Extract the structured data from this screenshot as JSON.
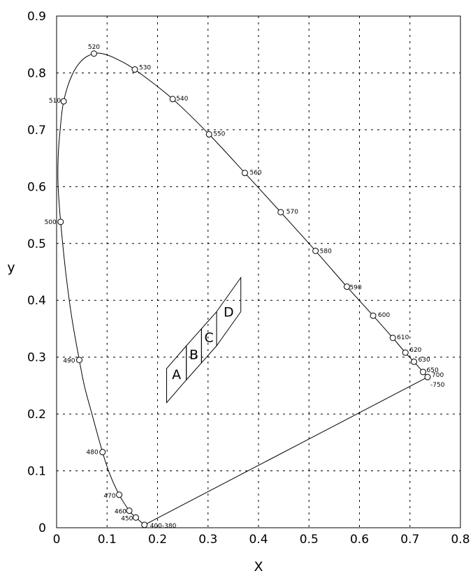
{
  "chart_data": {
    "type": "line",
    "title": "",
    "xlabel": "X",
    "ylabel": "y",
    "xlim": [
      0,
      0.8
    ],
    "ylim": [
      0,
      0.9
    ],
    "x_ticks": [
      "0",
      "0.1",
      "0.2",
      "0.3",
      "0.4",
      "0.5",
      "0.6",
      "0.7",
      "0.8"
    ],
    "y_ticks": [
      "0",
      "0.1",
      "0.2",
      "0.3",
      "0.4",
      "0.5",
      "0.6",
      "0.7",
      "0.8",
      "0.9"
    ],
    "grid": true,
    "spectral_locus": [
      {
        "label": "400-380",
        "x": 0.174,
        "y": 0.005
      },
      {
        "label": "450",
        "x": 0.157,
        "y": 0.018
      },
      {
        "label": "460",
        "x": 0.144,
        "y": 0.03
      },
      {
        "label": "470",
        "x": 0.124,
        "y": 0.058
      },
      {
        "label": "480",
        "x": 0.091,
        "y": 0.133
      },
      {
        "label": "490",
        "x": 0.045,
        "y": 0.295
      },
      {
        "label": "500",
        "x": 0.008,
        "y": 0.538
      },
      {
        "label": "510",
        "x": 0.014,
        "y": 0.75
      },
      {
        "label": "520",
        "x": 0.074,
        "y": 0.834
      },
      {
        "label": "530",
        "x": 0.155,
        "y": 0.806
      },
      {
        "label": "540",
        "x": 0.23,
        "y": 0.754
      },
      {
        "label": "550",
        "x": 0.302,
        "y": 0.692
      },
      {
        "label": "560",
        "x": 0.373,
        "y": 0.624
      },
      {
        "label": "570",
        "x": 0.444,
        "y": 0.555
      },
      {
        "label": "580",
        "x": 0.513,
        "y": 0.487
      },
      {
        "label": "590",
        "x": 0.575,
        "y": 0.424
      },
      {
        "label": "600",
        "x": 0.627,
        "y": 0.373
      },
      {
        "label": "610",
        "x": 0.666,
        "y": 0.334
      },
      {
        "label": "620",
        "x": 0.691,
        "y": 0.308
      },
      {
        "label": "630",
        "x": 0.708,
        "y": 0.292
      },
      {
        "label": "650",
        "x": 0.726,
        "y": 0.274
      },
      {
        "label": "700",
        "x": 0.735,
        "y": 0.265
      }
    ],
    "locus_end_label": "-750",
    "locus_curve": [
      [
        0.174,
        0.005
      ],
      [
        0.157,
        0.018
      ],
      [
        0.144,
        0.03
      ],
      [
        0.124,
        0.058
      ],
      [
        0.105,
        0.095
      ],
      [
        0.091,
        0.133
      ],
      [
        0.07,
        0.2
      ],
      [
        0.055,
        0.25
      ],
      [
        0.045,
        0.295
      ],
      [
        0.03,
        0.37
      ],
      [
        0.018,
        0.45
      ],
      [
        0.008,
        0.538
      ],
      [
        0.003,
        0.6
      ],
      [
        0.003,
        0.65
      ],
      [
        0.007,
        0.7
      ],
      [
        0.014,
        0.75
      ],
      [
        0.03,
        0.795
      ],
      [
        0.05,
        0.822
      ],
      [
        0.074,
        0.834
      ],
      [
        0.095,
        0.833
      ],
      [
        0.12,
        0.824
      ],
      [
        0.155,
        0.806
      ],
      [
        0.23,
        0.754
      ],
      [
        0.302,
        0.692
      ],
      [
        0.373,
        0.624
      ],
      [
        0.444,
        0.555
      ],
      [
        0.513,
        0.487
      ],
      [
        0.575,
        0.424
      ],
      [
        0.627,
        0.373
      ],
      [
        0.666,
        0.334
      ],
      [
        0.691,
        0.308
      ],
      [
        0.708,
        0.292
      ],
      [
        0.726,
        0.274
      ],
      [
        0.735,
        0.265
      ]
    ],
    "regions": [
      {
        "label": "A",
        "corners": [
          [
            0.218,
            0.22
          ],
          [
            0.257,
            0.26
          ],
          [
            0.257,
            0.32
          ],
          [
            0.218,
            0.28
          ]
        ]
      },
      {
        "label": "B",
        "corners": [
          [
            0.257,
            0.26
          ],
          [
            0.287,
            0.29
          ],
          [
            0.287,
            0.35
          ],
          [
            0.257,
            0.32
          ]
        ]
      },
      {
        "label": "C",
        "corners": [
          [
            0.287,
            0.29
          ],
          [
            0.317,
            0.32
          ],
          [
            0.317,
            0.38
          ],
          [
            0.287,
            0.35
          ]
        ]
      },
      {
        "label": "D",
        "corners": [
          [
            0.317,
            0.32
          ],
          [
            0.365,
            0.38
          ],
          [
            0.365,
            0.44
          ],
          [
            0.317,
            0.38
          ]
        ]
      }
    ]
  }
}
